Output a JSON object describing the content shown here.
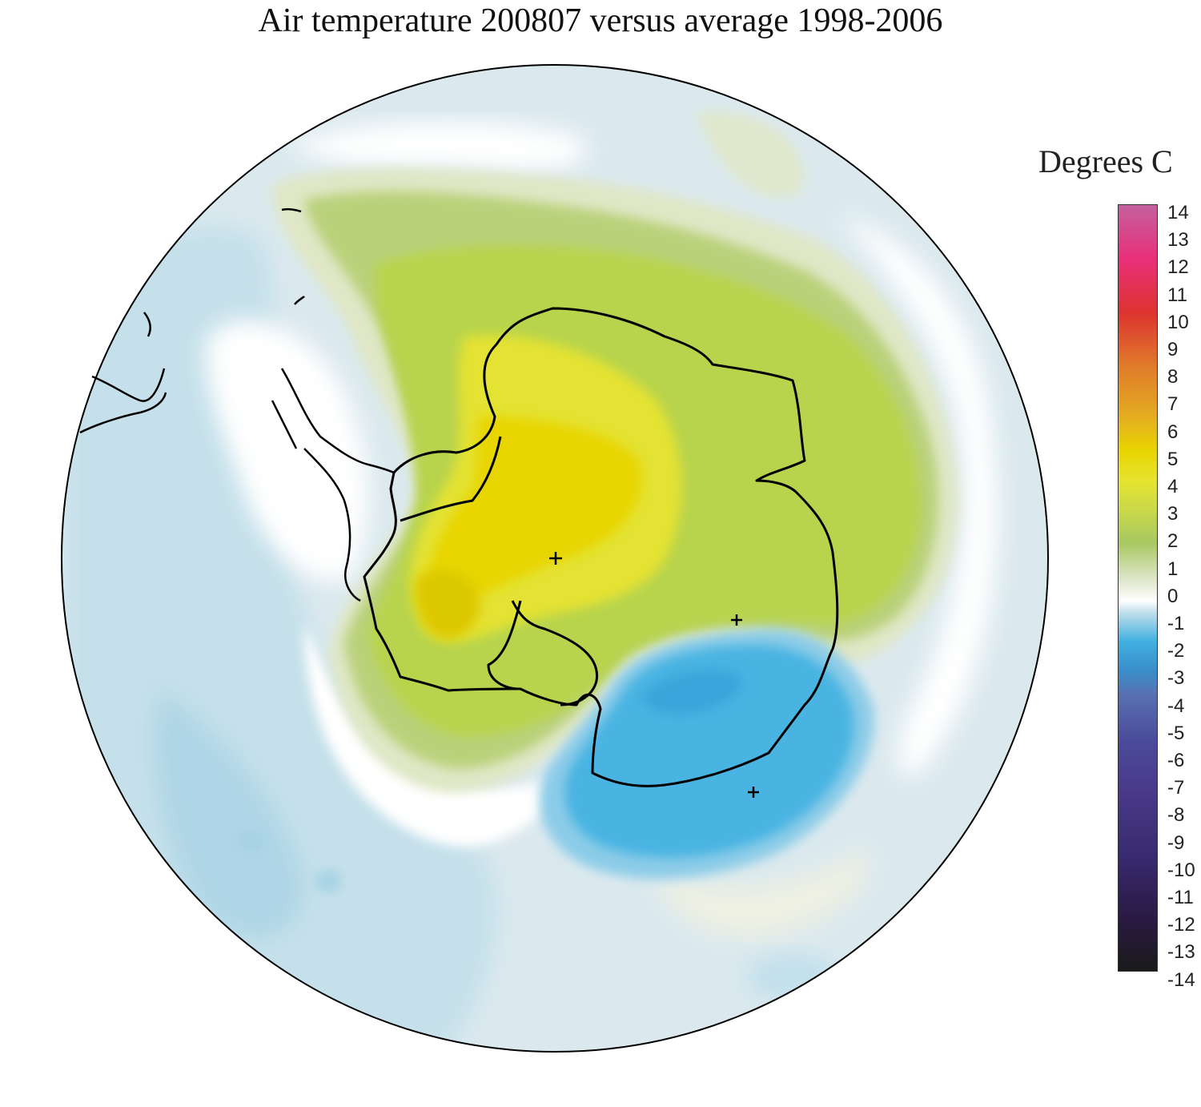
{
  "title": "Air temperature 200807 versus average 1998-2006",
  "legend": {
    "title": "Degrees C",
    "ticks": [
      "14",
      "13",
      "12",
      "11",
      "10",
      "9",
      "8",
      "7",
      "6",
      "5",
      "4",
      "3",
      "2",
      "1",
      "0",
      "-1",
      "-2",
      "-3",
      "-4",
      "-5",
      "-6",
      "-7",
      "-8",
      "-9",
      "-10",
      "-11",
      "-12",
      "-13",
      "-14"
    ],
    "range": [
      -14,
      14
    ],
    "colors": {
      "14": "#c4609e",
      "12": "#e8307a",
      "10": "#dd3330",
      "8": "#e07a2a",
      "6": "#e4b020",
      "5": "#e8d400",
      "4": "#e6e430",
      "3": "#c8d84a",
      "2": "#a8c860",
      "1": "#dfe6cc",
      "0": "#ffffff",
      "-1": "#c8e2ec",
      "-2": "#40b0e0",
      "-3": "#3a8cc8",
      "-4": "#5870b0",
      "-6": "#4a4a9a",
      "-8": "#4a3a8a",
      "-10": "#382a70",
      "-12": "#2a1a44",
      "-14": "#1a1a1a"
    }
  },
  "markers": [
    "+",
    "+",
    "+"
  ]
}
